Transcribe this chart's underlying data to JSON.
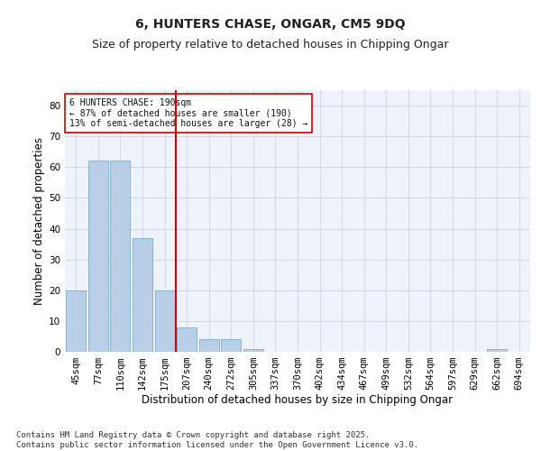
{
  "title": "6, HUNTERS CHASE, ONGAR, CM5 9DQ",
  "subtitle": "Size of property relative to detached houses in Chipping Ongar",
  "xlabel": "Distribution of detached houses by size in Chipping Ongar",
  "ylabel": "Number of detached properties",
  "categories": [
    "45sqm",
    "77sqm",
    "110sqm",
    "142sqm",
    "175sqm",
    "207sqm",
    "240sqm",
    "272sqm",
    "305sqm",
    "337sqm",
    "370sqm",
    "402sqm",
    "434sqm",
    "467sqm",
    "499sqm",
    "532sqm",
    "564sqm",
    "597sqm",
    "629sqm",
    "662sqm",
    "694sqm"
  ],
  "values": [
    20,
    62,
    62,
    37,
    20,
    8,
    4,
    4,
    1,
    0,
    0,
    0,
    0,
    0,
    0,
    0,
    0,
    0,
    0,
    1,
    0
  ],
  "bar_color": "#b8cfe8",
  "bar_edge_color": "#7aadd4",
  "vline_x_index": 4.5,
  "vline_color": "#cc0000",
  "annotation_text": "6 HUNTERS CHASE: 190sqm\n← 87% of detached houses are smaller (190)\n13% of semi-detached houses are larger (28) →",
  "annotation_box_color": "#cc0000",
  "ylim": [
    0,
    85
  ],
  "yticks": [
    0,
    10,
    20,
    30,
    40,
    50,
    60,
    70,
    80
  ],
  "grid_color": "#d0d8e8",
  "background_color": "#eef2fa",
  "footer": "Contains HM Land Registry data © Crown copyright and database right 2025.\nContains public sector information licensed under the Open Government Licence v3.0.",
  "title_fontsize": 10,
  "subtitle_fontsize": 9,
  "xlabel_fontsize": 8.5,
  "ylabel_fontsize": 8.5,
  "tick_fontsize": 7.5,
  "annotation_fontsize": 7,
  "footer_fontsize": 6.5
}
